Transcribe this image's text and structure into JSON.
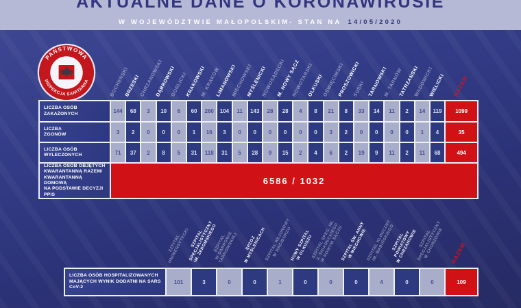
{
  "header": {
    "title": "AKTUALNE DANE O KORONAWIRUSIE",
    "subtitle": "W WOJEWÓDZTWIE MAŁOPOLSKIM- STAN NA",
    "date": "14/05/2020"
  },
  "logo": {
    "line_top": "PAŃSTWOWA",
    "line_bottom": "INSPEKCJA SANITARNA"
  },
  "colors": {
    "accent_red": "#d01217",
    "navy": "#2e3a80",
    "light_cell": "#a8adc9",
    "band_lavender": "#b6b9d6"
  },
  "razem_label": "RAZEM",
  "chart_data": [
    {
      "type": "table",
      "title": "AKTUALNE DANE O KORONAWIRUSIE — W WOJEWÓDZTWIE MAŁOPOLSKIM, STAN NA 14/05/2020",
      "categories": [
        "BOCHEŃSKI",
        "BRZESKI",
        "CHRZANOWSKI",
        "DĄBROWSKI",
        "GORLICKI",
        "KRAKOWSKI",
        "M. KRAKÓW",
        "LIMANOWSKI",
        "MIECHOWSKI",
        "MYŚLENICKI",
        "NOWOSĄDECKI",
        "M. NOWY SĄCZ",
        "NOWOTARSKI",
        "OLKUSKI",
        "OŚWIĘCIMSKI",
        "PROSZOWICKI",
        "SUSKI",
        "TARNOWSKI",
        "M. TARNÓW",
        "TATRZAŃSKI",
        "WADOWICKI",
        "WIELICKI"
      ],
      "total_label": "RAZEM",
      "series": [
        {
          "name": "LICZBA OSÓB\nZAKAŻONYCH",
          "values": [
            144,
            68,
            3,
            10,
            6,
            60,
            260,
            104,
            11,
            143,
            28,
            28,
            4,
            8,
            21,
            8,
            33,
            14,
            11,
            2,
            14,
            119
          ],
          "total": 1099
        },
        {
          "name": "LICZBA\nZGONÓW",
          "values": [
            3,
            2,
            0,
            0,
            0,
            1,
            16,
            3,
            0,
            0,
            0,
            0,
            0,
            0,
            3,
            2,
            0,
            0,
            0,
            0,
            1,
            4
          ],
          "total": 35
        },
        {
          "name": "LICZBA OSÓB\nWYLECZONYCH",
          "values": [
            71,
            37,
            2,
            8,
            5,
            31,
            118,
            31,
            5,
            28,
            9,
            15,
            2,
            4,
            6,
            2,
            19,
            9,
            11,
            2,
            11,
            68
          ],
          "total": 494
        }
      ],
      "quarantine": {
        "label": "LICZBA OSÓB OBJĘTYCH\nKWARANTANNĄ RAZEM/\nKWARANTANNĄ DOMOWĄ\nNA PODSTAWIE DECYZJI PPIS",
        "value": "6586 / 1032"
      }
    },
    {
      "type": "table",
      "categories": [
        "SZPITAL UNIWERSYTECKI",
        "SZPITAL SPECJALISTYCZNY IM. ŻEROMSKIEGO",
        "SZPITAL W DĄBROWIE TARNOWSKIEJ",
        "SPZOZ W MYŚLENICACH",
        "SZPITAL REJONOWY W RACIBORZU",
        "NOWY SZPITAL W OLKUSZU",
        "SZPITAL SPEC. IM. J. ŚNIADECKIEGO W NOWYM SĄCZU",
        "SZPITAL ŚW. ANNY W MIECHOWIE",
        "SZPITAL KLINICZNY IM. BABIŃSKIEGO",
        "SZPITAL POWIATOWY W CHRZANOWIE",
        "SZPITAL SPECJALISTYCZNY W CHORZOWIE"
      ],
      "categories_lines": [
        [
          "SZPITAL",
          "UNIWERSYTECKI"
        ],
        [
          "SZPITAL",
          "SPECJALISTYCZNY",
          "IM. ŻEROMSKIEGO"
        ],
        [
          "SZPITAL",
          "W DĄBROWIE",
          "TARNOWSKIEJ"
        ],
        [
          "SPZOZ",
          "W MYŚLENICACH"
        ],
        [
          "SZPITAL REJONOWY",
          "W RACIBORZU"
        ],
        [
          "NOWY SZPITAL",
          "W OLKUSZU"
        ],
        [
          "SZPITAL SPEC. IM.",
          "J. ŚNIADECKIEGO",
          "W NOWYM SĄCZU"
        ],
        [
          "SZPITAL ŚW. ANNY",
          "W MIECHOWIE"
        ],
        [
          "SZPITAL KLINICZNY",
          "IM. BABIŃSKIEGO"
        ],
        [
          "SZPITAL",
          "POWIATOWY",
          "W CHRZANOWIE"
        ],
        [
          "SZPITAL",
          "SPECJALISTYCZNY",
          "W CHORZOWIE"
        ]
      ],
      "total_label": "RAZEM",
      "series": [
        {
          "name": "LICZBA OSÓB HOSPITALIZOWANYCH\nMAJĄCYCH WYNIK DODATNI NA SARS CoV-2",
          "values": [
            101,
            3,
            0,
            0,
            1,
            0,
            0,
            0,
            4,
            0,
            0
          ],
          "total": 109
        }
      ]
    }
  ]
}
